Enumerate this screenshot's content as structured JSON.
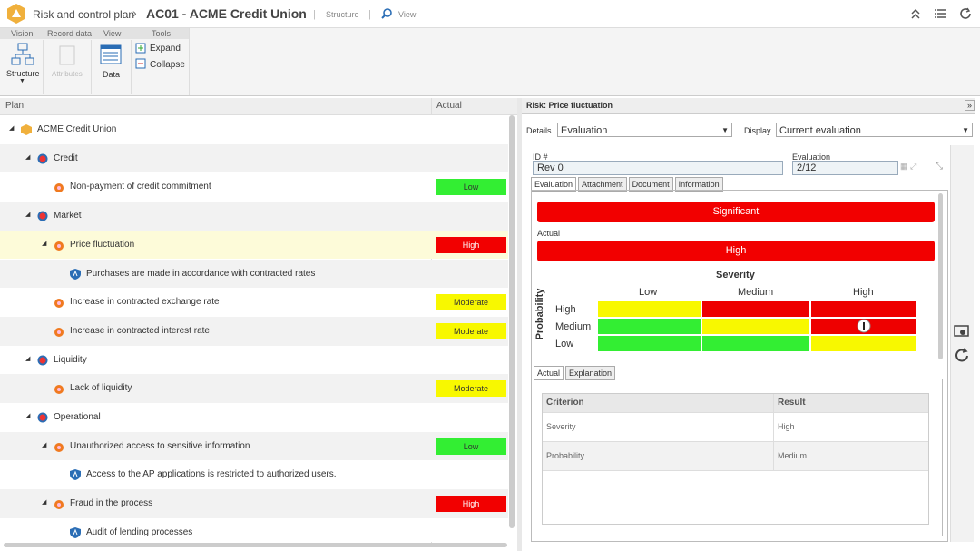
{
  "breadcrumb": {
    "module": "Risk and control plan",
    "record": "AC01 - ACME Credit Union",
    "links": [
      "Structure",
      "View"
    ]
  },
  "toolbar": {
    "groups": [
      {
        "title": "Vision",
        "buttons": [
          "Structure"
        ]
      },
      {
        "title": "Record data",
        "buttons": [
          "Attributes"
        ]
      },
      {
        "title": "View",
        "buttons": [
          "Data"
        ]
      },
      {
        "title": "Tools",
        "buttons": [
          "Expand",
          "Collapse"
        ]
      }
    ]
  },
  "plan": {
    "columns": [
      "Plan",
      "Actual"
    ],
    "tree": {
      "label": "ACME Credit Union",
      "children": [
        {
          "label": "Credit",
          "children": [
            {
              "label": "Non-payment of credit commitment",
              "actual": "Low",
              "actual_color": "#33ee33"
            }
          ]
        },
        {
          "label": "Market",
          "children": [
            {
              "label": "Price fluctuation",
              "actual": "High",
              "actual_color": "#f20000",
              "selected": true,
              "children": [
                {
                  "label": "Purchases are made in accordance with contracted rates"
                }
              ]
            },
            {
              "label": "Increase in contracted exchange rate",
              "actual": "Moderate",
              "actual_color": "#f8f800"
            },
            {
              "label": "Increase in contracted interest rate",
              "actual": "Moderate",
              "actual_color": "#f8f800"
            }
          ]
        },
        {
          "label": "Liquidity",
          "children": [
            {
              "label": "Lack of liquidity",
              "actual": "Moderate",
              "actual_color": "#f8f800"
            }
          ]
        },
        {
          "label": "Operational",
          "children": [
            {
              "label": "Unauthorized access to sensitive information",
              "actual": "Low",
              "actual_color": "#33ee33",
              "children": [
                {
                  "label": "Access to the AP applications is restricted to authorized users."
                }
              ]
            },
            {
              "label": "Fraud in the process",
              "actual": "High",
              "actual_color": "#f20000",
              "children": [
                {
                  "label": "Audit of lending processes"
                }
              ]
            }
          ]
        }
      ]
    }
  },
  "detail": {
    "title": "Risk: Price fluctuation",
    "details_label": "Details",
    "details_value": "Evaluation",
    "display_label": "Display",
    "display_value": "Current evaluation",
    "id_label": "ID #",
    "id_value": "Rev 0",
    "evaluation_label": "Evaluation",
    "evaluation_value": "2/12",
    "tabs": [
      "Evaluation",
      "Attachment",
      "Document",
      "Information"
    ],
    "result": "Significant",
    "actual_label": "Actual",
    "actual_value": "High",
    "matrix": {
      "title": "Severity",
      "axis_label": "Probability",
      "columns": [
        "Low",
        "Medium",
        "High"
      ],
      "rows": [
        "High",
        "Medium",
        "Low"
      ]
    },
    "subtabs": [
      "Actual",
      "Explanation"
    ],
    "criteria": {
      "columns": [
        "Criterion",
        "Result"
      ],
      "rows": [
        [
          "Severity",
          "High"
        ],
        [
          "Probability",
          "Medium"
        ]
      ]
    }
  }
}
